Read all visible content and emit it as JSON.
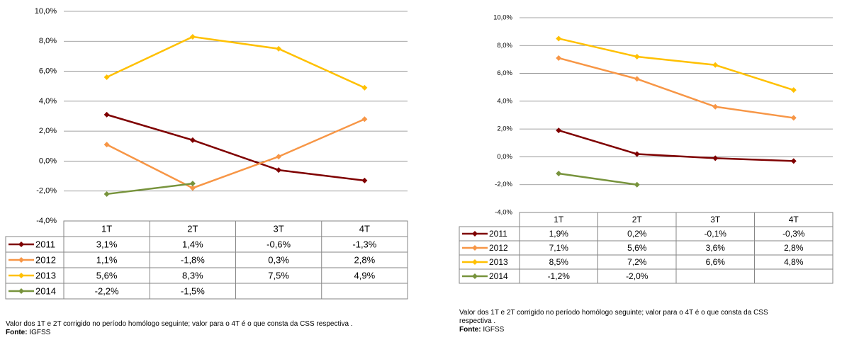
{
  "chart_data": [
    {
      "type": "line",
      "categories": [
        "1T",
        "2T",
        "3T",
        "4T"
      ],
      "ylim": [
        -4,
        10
      ],
      "yticks": [
        {
          "value": -4,
          "label": "-4,0%"
        },
        {
          "value": -2,
          "label": "-2,0%"
        },
        {
          "value": 0,
          "label": "0,0%"
        },
        {
          "value": 2,
          "label": "2,0%"
        },
        {
          "value": 4,
          "label": "4,0%"
        },
        {
          "value": 6,
          "label": "6,0%"
        },
        {
          "value": 8,
          "label": "8,0%"
        },
        {
          "value": 10,
          "label": "10,0%"
        }
      ],
      "grid": true,
      "series": [
        {
          "name": "2011",
          "color": "#7f0000",
          "values": [
            3.1,
            1.4,
            -0.6,
            -1.3
          ],
          "value_labels": [
            "3,1%",
            "1,4%",
            "-0,6%",
            "-1,3%"
          ]
        },
        {
          "name": "2012",
          "color": "#f79646",
          "values": [
            1.1,
            -1.8,
            0.3,
            2.8
          ],
          "value_labels": [
            "1,1%",
            "-1,8%",
            "0,3%",
            "2,8%"
          ]
        },
        {
          "name": "2013",
          "color": "#ffc000",
          "values": [
            5.6,
            8.3,
            7.5,
            4.9
          ],
          "value_labels": [
            "5,6%",
            "8,3%",
            "7,5%",
            "4,9%"
          ]
        },
        {
          "name": "2014",
          "color": "#77933c",
          "values": [
            -2.2,
            -1.5,
            null,
            null
          ],
          "value_labels": [
            "-2,2%",
            "-1,5%",
            null,
            null
          ]
        }
      ],
      "note": "Valor dos 1T e 2T corrigido no período homólogo seguinte; valor para o 4T é o que consta da  CSS respectiva .",
      "source_label": "Fonte:",
      "source": "IGFSS"
    },
    {
      "type": "line",
      "categories": [
        "1T",
        "2T",
        "3T",
        "4T"
      ],
      "ylim": [
        -4,
        10
      ],
      "yticks": [
        {
          "value": -4,
          "label": "-4,0%"
        },
        {
          "value": -2,
          "label": "-2,0%"
        },
        {
          "value": 0,
          "label": "0,0%"
        },
        {
          "value": 2,
          "label": "2,0%"
        },
        {
          "value": 4,
          "label": "4,0%"
        },
        {
          "value": 6,
          "label": "6,0%"
        },
        {
          "value": 8,
          "label": "8,0%"
        },
        {
          "value": 10,
          "label": "10,0%"
        }
      ],
      "grid": true,
      "series": [
        {
          "name": "2011",
          "color": "#7f0000",
          "values": [
            1.9,
            0.2,
            -0.1,
            -0.3
          ],
          "value_labels": [
            "1,9%",
            "0,2%",
            "-0,1%",
            "-0,3%"
          ]
        },
        {
          "name": "2012",
          "color": "#f79646",
          "values": [
            7.1,
            5.6,
            3.6,
            2.8
          ],
          "value_labels": [
            "7,1%",
            "5,6%",
            "3,6%",
            "2,8%"
          ]
        },
        {
          "name": "2013",
          "color": "#ffc000",
          "values": [
            8.5,
            7.2,
            6.6,
            4.8
          ],
          "value_labels": [
            "8,5%",
            "7,2%",
            "6,6%",
            "4,8%"
          ]
        },
        {
          "name": "2014",
          "color": "#77933c",
          "values": [
            -1.2,
            -2.0,
            null,
            null
          ],
          "value_labels": [
            "-1,2%",
            "-2,0%",
            null,
            null
          ]
        }
      ],
      "note": "Valor dos 1T e 2T corrigido no período homólogo seguinte; valor para o 4T é o que consta da  CSS respectiva .",
      "source_label": "Fonte:",
      "source": "IGFSS"
    }
  ]
}
